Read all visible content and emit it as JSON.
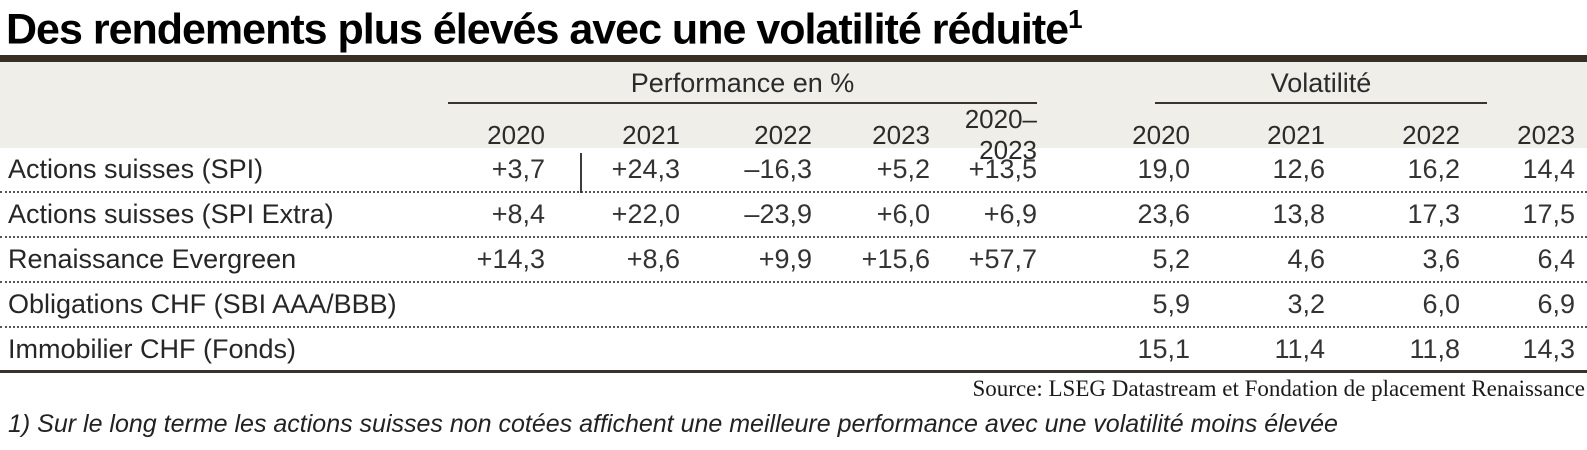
{
  "title": {
    "text": "Des rendements plus élevés avec une volatilité réduite",
    "superscript": "1"
  },
  "chart_data": {
    "type": "table",
    "title": "Des rendements plus élevés avec une volatilité réduite¹",
    "groups": [
      {
        "label": "Performance en %",
        "columns": [
          "2020",
          "2021",
          "2022",
          "2023",
          "2020–2023"
        ]
      },
      {
        "label": "Volatilité",
        "columns": [
          "2020",
          "2021",
          "2022",
          "2023"
        ]
      }
    ],
    "rows": [
      {
        "label": "Actions suisses (SPI)",
        "performance": [
          "+3,7",
          "+24,3",
          "–16,3",
          "+5,2",
          "+13,5"
        ],
        "volatility": [
          "19,0",
          "12,6",
          "16,2",
          "14,4"
        ]
      },
      {
        "label": "Actions suisses (SPI Extra)",
        "performance": [
          "+8,4",
          "+22,0",
          "–23,9",
          "+6,0",
          "+6,9"
        ],
        "volatility": [
          "23,6",
          "13,8",
          "17,3",
          "17,5"
        ]
      },
      {
        "label": "Renaissance Evergreen",
        "performance": [
          "+14,3",
          "+8,6",
          "+9,9",
          "+15,6",
          "+57,7"
        ],
        "volatility": [
          "5,2",
          "4,6",
          "3,6",
          "6,4"
        ]
      },
      {
        "label": "Obligations CHF (SBI AAA/BBB)",
        "performance": [
          "",
          "",
          "",
          "",
          ""
        ],
        "volatility": [
          "5,9",
          "3,2",
          "6,0",
          "6,9"
        ]
      },
      {
        "label": "Immobilier CHF (Fonds)",
        "performance": [
          "",
          "",
          "",
          "",
          ""
        ],
        "volatility": [
          "15,1",
          "11,4",
          "11,8",
          "14,3"
        ]
      }
    ],
    "source": "Source: LSEG Datastream et Fondation de placement Renaissance",
    "footnote": "1) Sur le long terme les actions suisses non cotées affichent une meilleure performance avec une volatilité moins élevée",
    "layout": {
      "legend": false,
      "grid": "dotted-row-separators"
    }
  },
  "colors": {
    "header_band": "#f0eee8",
    "rule": "#372f26",
    "text": "#262626",
    "dotted_separator": "#595550"
  }
}
